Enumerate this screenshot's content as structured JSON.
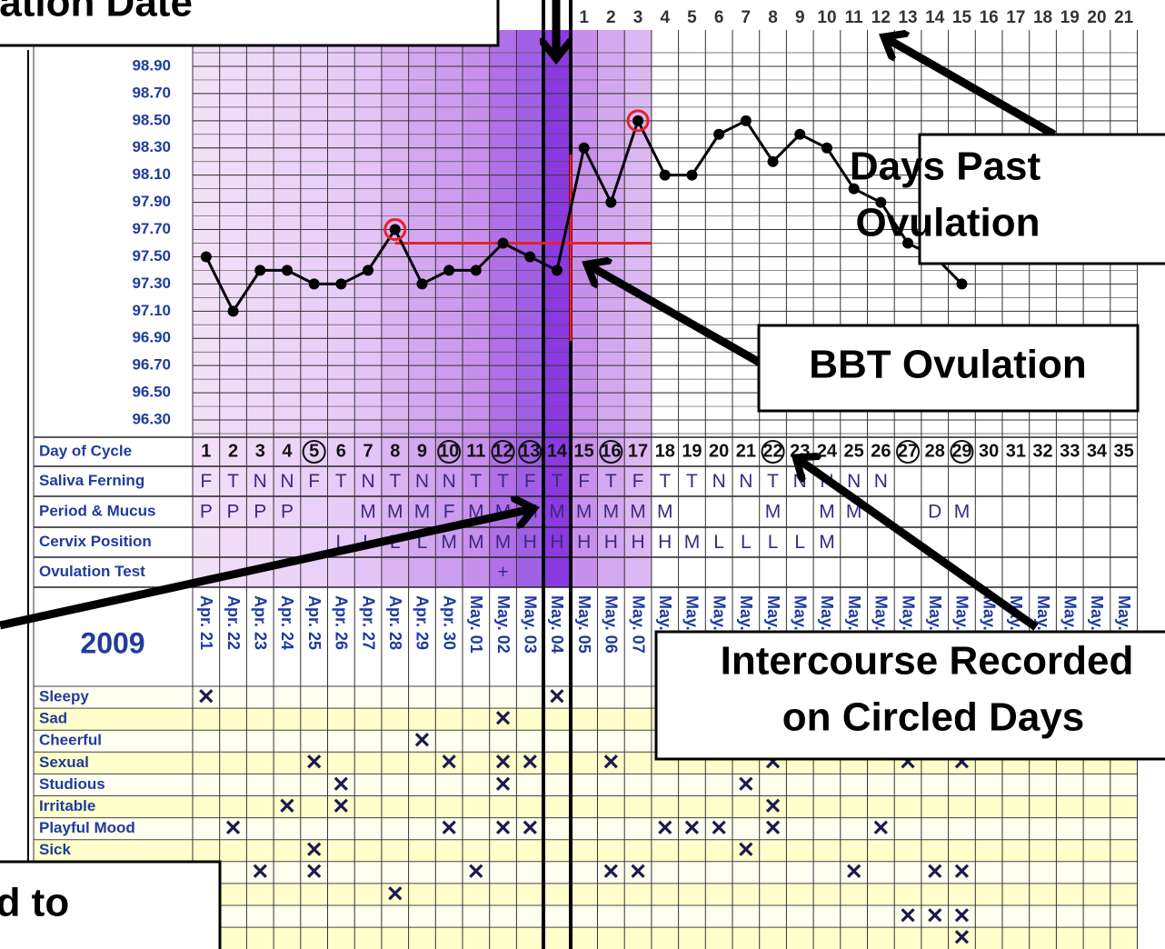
{
  "annotations": {
    "top_left": "ation Ovulation Date",
    "days_past": [
      "Days Past",
      "Ovulation"
    ],
    "bbt": "BBT Ovulation",
    "intercourse": [
      "Intercourse Recorded",
      "on Circled Days"
    ],
    "bottom_left": "plied to"
  },
  "chart_data": {
    "type": "line",
    "x": [
      1,
      2,
      3,
      4,
      5,
      6,
      7,
      8,
      9,
      10,
      11,
      12,
      13,
      14,
      15,
      16,
      17,
      18,
      19,
      20,
      21,
      22,
      23,
      24,
      25,
      26,
      27,
      28,
      29,
      30,
      31,
      32,
      33,
      34,
      35
    ],
    "values": [
      97.5,
      97.1,
      97.4,
      97.4,
      97.3,
      97.3,
      97.4,
      97.7,
      97.3,
      97.4,
      97.4,
      97.6,
      97.5,
      97.4,
      98.3,
      97.9,
      98.5,
      98.1,
      98.1,
      98.4,
      98.5,
      98.2,
      98.4,
      98.3,
      98.0,
      97.9,
      97.6,
      97.5,
      97.3,
      null,
      null,
      null,
      null,
      null,
      null
    ],
    "color": "#000000",
    "ylim": [
      96.2,
      99.0
    ],
    "yticks": [
      {
        "value": 98.9,
        "label": "98.90"
      },
      {
        "value": 98.7,
        "label": "98.70"
      },
      {
        "value": 98.5,
        "label": "98.50"
      },
      {
        "value": 98.3,
        "label": "98.30"
      },
      {
        "value": 98.1,
        "label": "98.10"
      },
      {
        "value": 97.9,
        "label": "97.90"
      },
      {
        "value": 97.7,
        "label": "97.70"
      },
      {
        "value": 97.5,
        "label": "97.50"
      },
      {
        "value": 97.3,
        "label": "97.30"
      },
      {
        "value": 97.1,
        "label": "97.10"
      },
      {
        "value": 96.9,
        "label": "96.90"
      },
      {
        "value": 96.7,
        "label": "96.70"
      },
      {
        "value": 96.5,
        "label": "96.50"
      },
      {
        "value": 96.3,
        "label": "96.30"
      }
    ],
    "grid": true,
    "marked_days": [
      8,
      17
    ],
    "coverline": 97.6,
    "coverline_color": "#e8202a",
    "days_past_ovulation": [
      1,
      2,
      3,
      4,
      5,
      6,
      7,
      8,
      9,
      10,
      11,
      12,
      13,
      14,
      15,
      16,
      17,
      18,
      19,
      20,
      21
    ]
  },
  "rows": {
    "day_of_cycle": "Day of Cycle",
    "circled_days": [
      5,
      10,
      12,
      13,
      16,
      22,
      27,
      29
    ],
    "saliva": {
      "label": "Saliva Ferning",
      "values": [
        "F",
        "T",
        "N",
        "N",
        "F",
        "T",
        "N",
        "T",
        "N",
        "N",
        "T",
        "T",
        "F",
        "T",
        "F",
        "T",
        "F",
        "T",
        "T",
        "N",
        "N",
        "T",
        "N",
        "N",
        "N",
        "N",
        null,
        null,
        null,
        null,
        null,
        null,
        null,
        null,
        null
      ]
    },
    "period": {
      "label": "Period & Mucus",
      "values": [
        "P",
        "P",
        "P",
        "P",
        null,
        null,
        "M",
        "M",
        "M",
        "F",
        "M",
        "M",
        "M",
        "M",
        "M",
        "M",
        "M",
        "M",
        null,
        null,
        null,
        "M",
        null,
        "M",
        "M",
        null,
        null,
        "D",
        "M",
        null,
        null,
        null,
        null,
        null,
        null
      ]
    },
    "cervix": {
      "label": "Cervix Position",
      "values": [
        null,
        null,
        null,
        null,
        null,
        "L",
        "L",
        "L",
        "L",
        "M",
        "M",
        "M",
        "H",
        "H",
        "H",
        "H",
        "H",
        "H",
        "M",
        "L",
        "L",
        "L",
        "L",
        "M",
        null,
        null,
        null,
        null,
        null,
        null,
        null,
        null,
        null,
        null,
        null
      ]
    },
    "ovulation_test": {
      "label": "Ovulation Test",
      "values": [
        null,
        null,
        null,
        null,
        null,
        null,
        null,
        null,
        null,
        null,
        null,
        "+",
        null,
        null,
        null,
        null,
        null,
        null,
        null,
        null,
        null,
        null,
        null,
        null,
        null,
        null,
        null,
        null,
        null,
        null,
        null,
        null,
        null,
        null,
        null
      ]
    }
  },
  "year": "2009",
  "dates": [
    "Apr. 21",
    "Apr. 22",
    "Apr. 23",
    "Apr. 24",
    "Apr. 25",
    "Apr. 26",
    "Apr. 27",
    "Apr. 28",
    "Apr. 29",
    "Apr. 30",
    "May. 01",
    "May. 02",
    "May. 03",
    "May. 04",
    "May. 05",
    "May. 06",
    "May. 07",
    "May. 08",
    "May. 09",
    "May. 10",
    "May. 11",
    "May. 12",
    "May. 13",
    "May. 14",
    "May. 15",
    "May. 16",
    "May. 17",
    "May. 18",
    "May. 19",
    "May. 20",
    "May. 21",
    "May. 22",
    "May. 23",
    "May. 24",
    "May. 25"
  ],
  "symptoms": [
    {
      "label": "Sleepy",
      "days": [
        1,
        14
      ]
    },
    {
      "label": "Sad",
      "days": [
        12
      ]
    },
    {
      "label": "Cheerful",
      "days": [
        9
      ]
    },
    {
      "label": "Sexual",
      "days": [
        5,
        10,
        12,
        13,
        16,
        22,
        27,
        29
      ]
    },
    {
      "label": "Studious",
      "days": [
        6,
        12,
        21
      ]
    },
    {
      "label": "Irritable",
      "days": [
        4,
        6,
        22
      ]
    },
    {
      "label": "Playful Mood",
      "days": [
        2,
        10,
        12,
        13,
        18,
        19,
        20,
        22,
        26
      ]
    },
    {
      "label": "Sick",
      "days": [
        5,
        21
      ]
    },
    {
      "label": null,
      "days": [
        3,
        5,
        11,
        16,
        17,
        25,
        28,
        29
      ]
    },
    {
      "label": null,
      "days": [
        8
      ]
    },
    {
      "label": null,
      "days": [
        27,
        28,
        29
      ]
    },
    {
      "label": null,
      "days": [
        29
      ]
    }
  ]
}
